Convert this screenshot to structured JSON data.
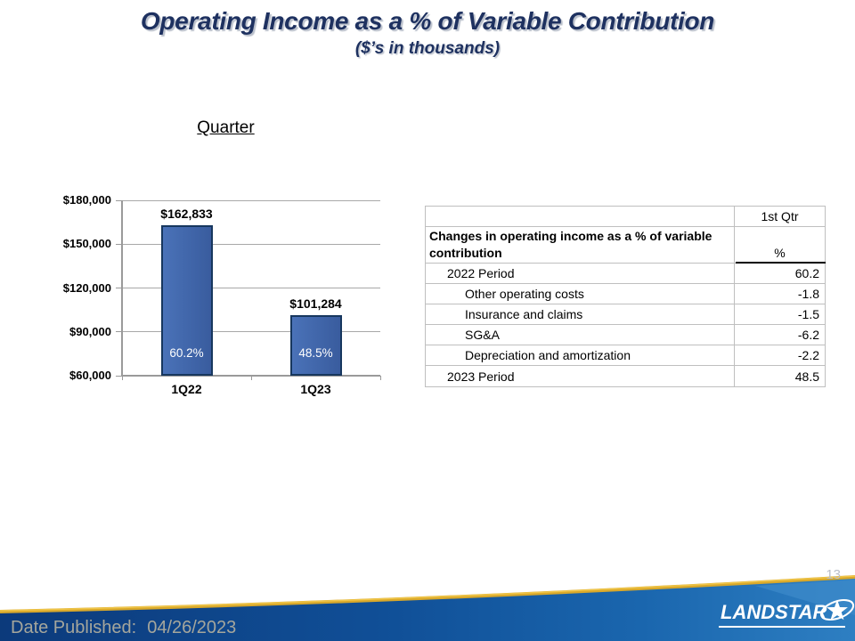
{
  "slide": {
    "title": "Operating Income as a % of Variable Contribution",
    "subtitle": "($’s in thousands)",
    "page_number": "13"
  },
  "chart_data": {
    "type": "bar",
    "title": "Quarter",
    "categories": [
      "1Q22",
      "1Q23"
    ],
    "values": [
      162833,
      101284
    ],
    "value_labels": [
      "$162,833",
      "$101,284"
    ],
    "inner_labels": [
      "60.2%",
      "48.5%"
    ],
    "ylim": [
      60000,
      180000
    ],
    "yticks": [
      {
        "value": 60000,
        "label": "$60,000"
      },
      {
        "value": 90000,
        "label": "$90,000"
      },
      {
        "value": 120000,
        "label": "$120,000"
      },
      {
        "value": 150000,
        "label": "$150,000"
      },
      {
        "value": 180000,
        "label": "$180,000"
      }
    ],
    "grid": true,
    "legend": false,
    "bar_color_start": "#4a72b8",
    "bar_color_end": "#395c9e",
    "bar_border_color": "#17375e"
  },
  "table": {
    "column_header": "1st Qtr",
    "row_header": "Changes in operating income as a % of variable contribution",
    "unit_header": "%",
    "rows": [
      {
        "label": "2022 Period",
        "value": "60.2",
        "indent": 1
      },
      {
        "label": "Other operating costs",
        "value": "-1.8",
        "indent": 2
      },
      {
        "label": "Insurance and claims",
        "value": "-1.5",
        "indent": 2
      },
      {
        "label": "SG&A",
        "value": "-6.2",
        "indent": 2
      },
      {
        "label": "Depreciation and amortization",
        "value": "-2.2",
        "indent": 2
      },
      {
        "label": "2023 Period",
        "value": "48.5",
        "indent": 1
      }
    ]
  },
  "footer": {
    "date_label": "Date Published:",
    "date_value": "04/26/2023",
    "logo_text": "LANDSTAR",
    "band_navy": "#0c3a7b",
    "band_mid": "#104f97",
    "band_light": "#2e7fc2",
    "band_gold": "#d9a82a"
  }
}
